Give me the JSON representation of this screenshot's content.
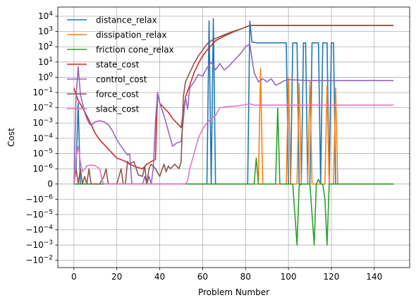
{
  "chart_data": {
    "type": "line",
    "xlabel": "Problem Number",
    "ylabel": "Cost",
    "xlim": [
      -7.5,
      156.5
    ],
    "ylim": [
      -0.03,
      40000
    ],
    "yscale": "symlog",
    "linthresh": 1e-06,
    "grid": true,
    "legend_position": "top-left",
    "x_ticks": [
      0,
      20,
      40,
      60,
      80,
      100,
      120,
      140
    ],
    "x_tick_labels": [
      "0",
      "20",
      "40",
      "60",
      "80",
      "100",
      "120",
      "140"
    ],
    "y_ticks": [
      -0.01,
      -0.001,
      -0.0001,
      -1e-05,
      -1e-06,
      0,
      1e-06,
      1e-05,
      0.0001,
      0.001,
      0.01,
      0.1,
      1,
      10,
      100,
      1000,
      10000
    ],
    "y_tick_labels": [
      {
        "base": "−10",
        "exp": "−2"
      },
      {
        "base": "−10",
        "exp": "−3"
      },
      {
        "base": "−10",
        "exp": "−4"
      },
      {
        "base": "−10",
        "exp": "−5"
      },
      {
        "base": "−10",
        "exp": "−6"
      },
      {
        "base": "0",
        "exp": ""
      },
      {
        "base": "10",
        "exp": "−6"
      },
      {
        "base": "10",
        "exp": "−5"
      },
      {
        "base": "10",
        "exp": "−4"
      },
      {
        "base": "10",
        "exp": "−3"
      },
      {
        "base": "10",
        "exp": "−2"
      },
      {
        "base": "10",
        "exp": "−1"
      },
      {
        "base": "10",
        "exp": "0"
      },
      {
        "base": "10",
        "exp": "1"
      },
      {
        "base": "10",
        "exp": "2"
      },
      {
        "base": "10",
        "exp": "3"
      },
      {
        "base": "10",
        "exp": "4"
      }
    ],
    "series": [
      {
        "name": "distance_relax",
        "color": "#1f77b4",
        "points": [
          [
            0,
            0
          ],
          [
            1,
            1e-06
          ],
          [
            2,
            0.02
          ],
          [
            3,
            0
          ],
          [
            4,
            0
          ],
          [
            61,
            0
          ],
          [
            62,
            0
          ],
          [
            63,
            5000
          ],
          [
            64,
            0
          ],
          [
            65,
            7000
          ],
          [
            66,
            0
          ],
          [
            81,
            0
          ],
          [
            82,
            5000
          ],
          [
            83,
            200
          ],
          [
            84,
            200
          ],
          [
            85,
            180
          ],
          [
            86,
            180
          ],
          [
            97,
            180
          ],
          [
            98,
            180
          ],
          [
            99,
            180
          ],
          [
            100,
            0
          ],
          [
            101,
            0
          ],
          [
            102,
            180
          ],
          [
            103,
            180
          ],
          [
            104,
            180
          ],
          [
            105,
            0
          ],
          [
            106,
            0
          ],
          [
            107,
            180
          ],
          [
            108,
            180
          ],
          [
            109,
            0
          ],
          [
            110,
            0
          ],
          [
            111,
            180
          ],
          [
            112,
            180
          ],
          [
            113,
            180
          ],
          [
            114,
            180
          ],
          [
            115,
            0
          ],
          [
            116,
            180
          ],
          [
            117,
            180
          ],
          [
            118,
            180
          ],
          [
            119,
            0
          ],
          [
            120,
            180
          ],
          [
            121,
            180
          ],
          [
            122,
            0
          ],
          [
            123,
            0
          ],
          [
            149,
            0
          ]
        ]
      },
      {
        "name": "dissipation_relax",
        "color": "#ff7f0e",
        "points": [
          [
            0,
            0
          ],
          [
            86,
            0
          ],
          [
            87,
            4
          ],
          [
            88,
            0
          ],
          [
            99,
            0
          ],
          [
            100,
            0.9
          ],
          [
            101,
            0
          ],
          [
            104,
            0
          ],
          [
            105,
            0.4
          ],
          [
            106,
            0
          ],
          [
            109,
            0
          ],
          [
            110,
            0.5
          ],
          [
            111,
            0
          ],
          [
            117,
            0
          ],
          [
            118,
            0.3
          ],
          [
            119,
            0
          ],
          [
            121,
            0
          ],
          [
            122,
            0.2
          ],
          [
            123,
            0
          ],
          [
            149,
            0
          ]
        ]
      },
      {
        "name": "friction cone_relax",
        "color": "#2ca02c",
        "points": [
          [
            0,
            0
          ],
          [
            83,
            0
          ],
          [
            84,
            0
          ],
          [
            85,
            5e-06
          ],
          [
            86,
            0
          ],
          [
            94,
            0
          ],
          [
            95,
            0.01
          ],
          [
            96,
            0
          ],
          [
            102,
            0
          ],
          [
            103,
            -1e-05
          ],
          [
            104,
            -0.001
          ],
          [
            105,
            -1e-07
          ],
          [
            106,
            0
          ],
          [
            110,
            0
          ],
          [
            111,
            -1e-05
          ],
          [
            112,
            -0.001
          ],
          [
            113,
            0
          ],
          [
            114,
            3e-07
          ],
          [
            115,
            0
          ],
          [
            116,
            0
          ],
          [
            117,
            -1e-06
          ],
          [
            118,
            -0.001
          ],
          [
            119,
            0
          ],
          [
            120,
            0
          ],
          [
            149,
            0
          ]
        ]
      },
      {
        "name": "state_cost",
        "color": "#d62728",
        "points": [
          [
            0,
            0.2
          ],
          [
            2,
            0.03
          ],
          [
            4,
            0.01
          ],
          [
            6,
            0.003
          ],
          [
            8,
            0.0008
          ],
          [
            10,
            0.0002
          ],
          [
            12,
            8e-05
          ],
          [
            14,
            4e-05
          ],
          [
            16,
            2e-05
          ],
          [
            18,
            1e-05
          ],
          [
            20,
            5e-06
          ],
          [
            22,
            4e-06
          ],
          [
            24,
            3e-06
          ],
          [
            26,
            2e-06
          ],
          [
            28,
            1.5e-06
          ],
          [
            30,
            1.2e-06
          ],
          [
            32,
            1e-06
          ],
          [
            34,
            2e-06
          ],
          [
            36,
            3e-06
          ],
          [
            38,
            4e-06
          ],
          [
            39,
            0.1
          ],
          [
            40,
            0.02
          ],
          [
            42,
            0.01
          ],
          [
            44,
            0.005
          ],
          [
            46,
            0.002
          ],
          [
            48,
            0.001
          ],
          [
            50,
            0.0005
          ],
          [
            51,
            0.005
          ],
          [
            52,
            0.05
          ],
          [
            54,
            0.3
          ],
          [
            56,
            2
          ],
          [
            58,
            8
          ],
          [
            60,
            25
          ],
          [
            62,
            60
          ],
          [
            64,
            120
          ],
          [
            66,
            250
          ],
          [
            70,
            500
          ],
          [
            74,
            900
          ],
          [
            78,
            1500
          ],
          [
            82,
            2500
          ],
          [
            84,
            2500
          ],
          [
            149,
            2500
          ]
        ]
      },
      {
        "name": "control_cost",
        "color": "#9467bd",
        "points": [
          [
            0,
            0
          ],
          [
            1,
            0.05
          ],
          [
            2,
            5
          ],
          [
            3,
            0.08
          ],
          [
            4,
            0.02
          ],
          [
            5,
            0.005
          ],
          [
            6,
            0.002
          ],
          [
            7,
            0.001
          ],
          [
            8,
            0.0007
          ],
          [
            10,
            0.0012
          ],
          [
            12,
            0.0014
          ],
          [
            14,
            0.0012
          ],
          [
            16,
            0.0008
          ],
          [
            18,
            0.0003
          ],
          [
            20,
            8e-05
          ],
          [
            22,
            3e-05
          ],
          [
            24,
            1.2e-05
          ],
          [
            25,
            8e-06
          ],
          [
            26,
            1e-05
          ],
          [
            27,
            0
          ],
          [
            30,
            0
          ],
          [
            32,
            0
          ],
          [
            33,
            5e-07
          ],
          [
            34,
            0
          ],
          [
            35,
            5e-07
          ],
          [
            36,
            0
          ],
          [
            37,
            1e-06
          ],
          [
            38,
            0.001
          ],
          [
            39,
            0.1
          ],
          [
            40,
            0.02
          ],
          [
            42,
            0.003
          ],
          [
            44,
            0.0003
          ],
          [
            46,
            3e-05
          ],
          [
            48,
            5e-05
          ],
          [
            50,
            6e-05
          ],
          [
            52,
            0.05
          ],
          [
            53,
            0.008
          ],
          [
            54,
            0.2
          ],
          [
            56,
            0.5
          ],
          [
            58,
            1.5
          ],
          [
            60,
            1.2
          ],
          [
            62,
            4
          ],
          [
            64,
            10
          ],
          [
            66,
            3
          ],
          [
            68,
            8
          ],
          [
            70,
            3
          ],
          [
            72,
            5
          ],
          [
            74,
            10
          ],
          [
            76,
            20
          ],
          [
            78,
            40
          ],
          [
            80,
            100
          ],
          [
            82,
            150
          ],
          [
            84,
            2
          ],
          [
            86,
            0.5
          ],
          [
            88,
            0.8
          ],
          [
            90,
            0.5
          ],
          [
            92,
            0.8
          ],
          [
            94,
            0.3
          ],
          [
            96,
            0.4
          ],
          [
            98,
            0.6
          ],
          [
            100,
            0.7
          ],
          [
            110,
            0.6
          ],
          [
            149,
            0.6
          ]
        ]
      },
      {
        "name": "force_cost",
        "color": "#8c564b",
        "points": [
          [
            0,
            0
          ],
          [
            1,
            1e-06
          ],
          [
            2,
            0
          ],
          [
            3,
            1e-06
          ],
          [
            4,
            0
          ],
          [
            5,
            5e-07
          ],
          [
            6,
            0
          ],
          [
            7,
            1e-06
          ],
          [
            8,
            0
          ],
          [
            10,
            0
          ],
          [
            12,
            0
          ],
          [
            14,
            5e-07
          ],
          [
            15,
            1e-06
          ],
          [
            16,
            0
          ],
          [
            18,
            0
          ],
          [
            20,
            0
          ],
          [
            22,
            1e-06
          ],
          [
            23,
            0
          ],
          [
            24,
            0
          ],
          [
            25,
            3e-06
          ],
          [
            26,
            2e-06
          ],
          [
            28,
            3e-06
          ],
          [
            30,
            6e-07
          ],
          [
            32,
            5e-07
          ],
          [
            33,
            1.5e-06
          ],
          [
            34,
            0
          ],
          [
            35,
            1e-06
          ],
          [
            36,
            2e-06
          ],
          [
            38,
            1e-06
          ],
          [
            40,
            5e-07
          ],
          [
            42,
            2e-06
          ],
          [
            43,
            8e-07
          ],
          [
            44,
            1.5e-06
          ],
          [
            45,
            1e-06
          ],
          [
            47,
            2e-06
          ],
          [
            49,
            1e-06
          ],
          [
            50,
            3e-06
          ],
          [
            51,
            0.05
          ],
          [
            52,
            0.5
          ],
          [
            54,
            2
          ],
          [
            56,
            8
          ],
          [
            58,
            25
          ],
          [
            60,
            60
          ],
          [
            62,
            150
          ],
          [
            64,
            250
          ],
          [
            66,
            350
          ],
          [
            70,
            600
          ],
          [
            74,
            1000
          ],
          [
            78,
            1500
          ],
          [
            82,
            2500
          ],
          [
            84,
            2500
          ],
          [
            149,
            2500
          ]
        ]
      },
      {
        "name": "slack_cost",
        "color": "#e377c2",
        "points": [
          [
            0,
            0
          ],
          [
            1,
            5e-06
          ],
          [
            2,
            3e-05
          ],
          [
            3,
            3e-06
          ],
          [
            4,
            8e-07
          ],
          [
            6,
            1.5e-06
          ],
          [
            8,
            1.8e-06
          ],
          [
            10,
            1.6e-06
          ],
          [
            12,
            1e-06
          ],
          [
            13,
            3e-07
          ],
          [
            14,
            0
          ],
          [
            52,
            0
          ],
          [
            53,
            2e-07
          ],
          [
            54,
            1e-06
          ],
          [
            56,
            1e-05
          ],
          [
            58,
            0.0001
          ],
          [
            60,
            0.0004
          ],
          [
            62,
            0.001
          ],
          [
            64,
            0.002
          ],
          [
            66,
            0.003
          ],
          [
            68,
            0.01
          ],
          [
            72,
            0.012
          ],
          [
            76,
            0.013
          ],
          [
            80,
            0.016
          ],
          [
            82,
            0.018
          ],
          [
            84,
            0.015
          ],
          [
            88,
            0.015
          ],
          [
            149,
            0.015
          ]
        ]
      }
    ]
  }
}
